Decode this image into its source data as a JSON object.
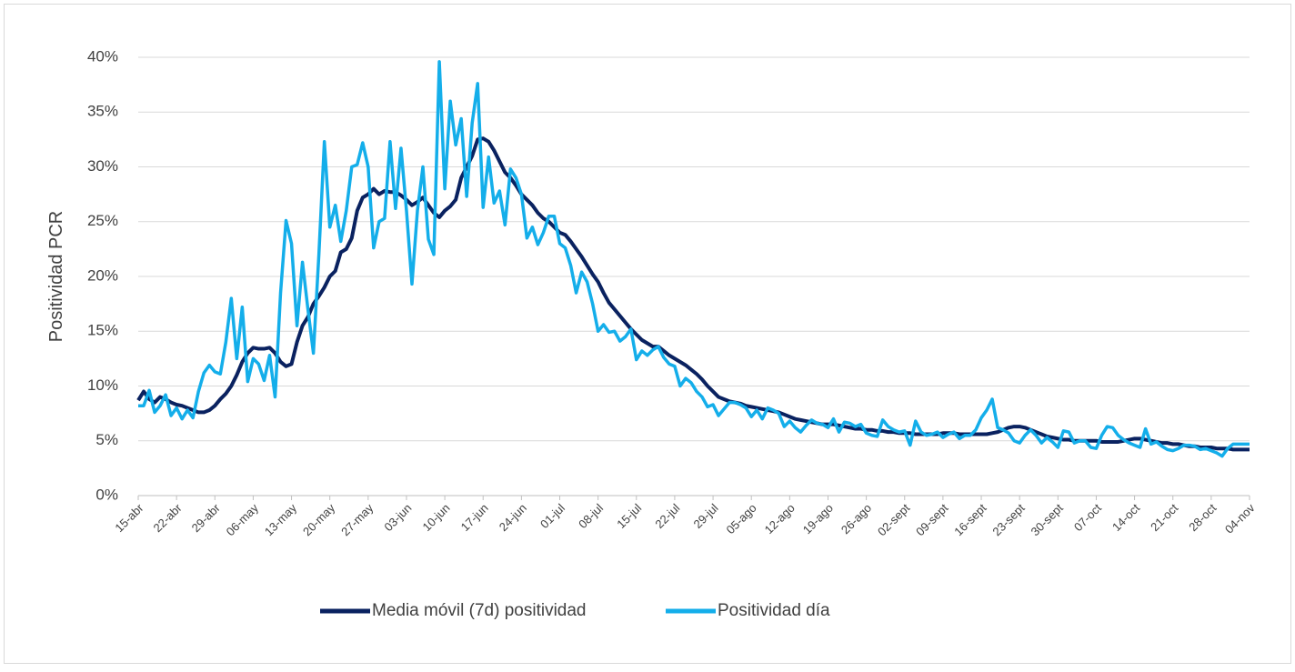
{
  "chart_data": {
    "type": "line",
    "y_label": "Positividad PCR",
    "categories": [
      "15-abr",
      null,
      null,
      null,
      null,
      null,
      null,
      "22-abr",
      null,
      null,
      null,
      null,
      null,
      null,
      "29-abr",
      null,
      null,
      null,
      null,
      null,
      null,
      "06-may",
      null,
      null,
      null,
      null,
      null,
      null,
      "13-may",
      null,
      null,
      null,
      null,
      null,
      null,
      "20-may",
      null,
      null,
      null,
      null,
      null,
      null,
      "27-may",
      null,
      null,
      null,
      null,
      null,
      null,
      "03-jun",
      null,
      null,
      null,
      null,
      null,
      null,
      "10-jun",
      null,
      null,
      null,
      null,
      null,
      null,
      "17-jun",
      null,
      null,
      null,
      null,
      null,
      null,
      "24-jun",
      null,
      null,
      null,
      null,
      null,
      null,
      "01-jul",
      null,
      null,
      null,
      null,
      null,
      null,
      "08-jul",
      null,
      null,
      null,
      null,
      null,
      null,
      "15-jul",
      null,
      null,
      null,
      null,
      null,
      null,
      "22-jul",
      null,
      null,
      null,
      null,
      null,
      null,
      "29-jul",
      null,
      null,
      null,
      null,
      null,
      null,
      "05-ago",
      null,
      null,
      null,
      null,
      null,
      null,
      "12-ago",
      null,
      null,
      null,
      null,
      null,
      null,
      "19-ago",
      null,
      null,
      null,
      null,
      null,
      null,
      "26-ago",
      null,
      null,
      null,
      null,
      null,
      null,
      "02-sept",
      null,
      null,
      null,
      null,
      null,
      null,
      "09-sept",
      null,
      null,
      null,
      null,
      null,
      null,
      "16-sept",
      null,
      null,
      null,
      null,
      null,
      null,
      "23-sept",
      null,
      null,
      null,
      null,
      null,
      null,
      "30-sept",
      null,
      null,
      null,
      null,
      null,
      null,
      "07-oct",
      null,
      null,
      null,
      null,
      null,
      null,
      "14-oct",
      null,
      null,
      null,
      null,
      null,
      null,
      "21-oct",
      null,
      null,
      null,
      null,
      null,
      null,
      "28-oct",
      null,
      null,
      null,
      null,
      null,
      null,
      "04-nov"
    ],
    "series": [
      {
        "name": "Media móvil (7d) positividad",
        "color": "#0a2260",
        "values": [
          8.7,
          9.5,
          8.8,
          8.5,
          9.0,
          8.8,
          8.5,
          8.3,
          8.2,
          8.0,
          7.8,
          7.6,
          7.6,
          7.8,
          8.2,
          8.8,
          9.3,
          10.0,
          11.0,
          12.2,
          13.0,
          13.5,
          13.4,
          13.4,
          13.5,
          13.0,
          12.2,
          11.8,
          12.0,
          14.0,
          15.5,
          16.3,
          17.5,
          18.2,
          19.0,
          20.0,
          20.5,
          22.2,
          22.5,
          23.5,
          26.0,
          27.2,
          27.5,
          28.0,
          27.5,
          27.8,
          27.7,
          27.7,
          27.4,
          27.0,
          26.5,
          26.8,
          27.2,
          26.5,
          25.8,
          25.4,
          26.0,
          26.4,
          27.0,
          29.0,
          30.0,
          31.0,
          32.5,
          32.6,
          32.3,
          31.5,
          30.5,
          29.5,
          29.0,
          28.3,
          27.5,
          27.0,
          26.5,
          25.8,
          25.3,
          25.0,
          24.5,
          24.0,
          23.8,
          23.2,
          22.5,
          21.8,
          21.0,
          20.2,
          19.5,
          18.5,
          17.6,
          17.0,
          16.4,
          15.8,
          15.2,
          14.7,
          14.2,
          13.9,
          13.6,
          13.6,
          13.2,
          12.8,
          12.5,
          12.2,
          11.9,
          11.5,
          11.1,
          10.6,
          10.0,
          9.5,
          9.0,
          8.8,
          8.6,
          8.5,
          8.4,
          8.2,
          8.1,
          8.0,
          7.9,
          7.8,
          7.7,
          7.6,
          7.4,
          7.2,
          7.0,
          6.9,
          6.8,
          6.7,
          6.6,
          6.5,
          6.5,
          6.5,
          6.4,
          6.3,
          6.2,
          6.1,
          6.1,
          6.0,
          6.0,
          5.9,
          5.9,
          5.8,
          5.8,
          5.7,
          5.7,
          5.7,
          5.6,
          5.6,
          5.6,
          5.6,
          5.6,
          5.7,
          5.7,
          5.7,
          5.6,
          5.6,
          5.6,
          5.6,
          5.6,
          5.6,
          5.7,
          5.8,
          6.0,
          6.2,
          6.3,
          6.3,
          6.2,
          6.0,
          5.8,
          5.6,
          5.4,
          5.3,
          5.2,
          5.1,
          5.1,
          5.0,
          5.0,
          5.0,
          5.0,
          5.0,
          4.9,
          4.9,
          4.9,
          4.9,
          5.0,
          5.1,
          5.2,
          5.2,
          5.1,
          5.0,
          4.9,
          4.8,
          4.8,
          4.7,
          4.7,
          4.6,
          4.5,
          4.5,
          4.4,
          4.4,
          4.4,
          4.3,
          4.3,
          4.3,
          4.2,
          4.2,
          4.2,
          4.2
        ]
      },
      {
        "name": "Positividad día",
        "color": "#14aeea",
        "values": [
          8.2,
          8.2,
          9.6,
          7.6,
          8.2,
          9.2,
          7.3,
          8.0,
          7.0,
          7.8,
          7.1,
          9.5,
          11.2,
          11.9,
          11.3,
          11.1,
          14.0,
          18.0,
          12.5,
          17.2,
          10.4,
          12.5,
          12.0,
          10.5,
          12.8,
          9.0,
          18.5,
          25.1,
          23.0,
          15.5,
          21.3,
          17.0,
          13.0,
          22.0,
          32.3,
          24.5,
          26.5,
          23.2,
          26.0,
          30.0,
          30.2,
          32.2,
          30.0,
          22.6,
          25.0,
          25.3,
          32.3,
          26.2,
          31.7,
          26.0,
          19.3,
          26.0,
          30.0,
          23.4,
          22.0,
          39.6,
          28.0,
          36.0,
          32.0,
          34.4,
          27.3,
          34.0,
          37.6,
          26.3,
          30.9,
          26.7,
          27.8,
          24.7,
          29.8,
          29.0,
          27.5,
          23.5,
          24.5,
          22.9,
          24.0,
          25.5,
          25.5,
          23.0,
          22.6,
          21.0,
          18.5,
          20.4,
          19.5,
          17.5,
          15.0,
          15.6,
          14.9,
          15.0,
          14.1,
          14.5,
          15.2,
          12.4,
          13.2,
          12.8,
          13.3,
          13.6,
          12.6,
          12.0,
          11.8,
          10.0,
          10.7,
          10.3,
          9.5,
          9.0,
          8.1,
          8.3,
          7.3,
          7.9,
          8.5,
          8.5,
          8.3,
          8.0,
          7.2,
          7.8,
          7.0,
          8.0,
          7.8,
          7.5,
          6.3,
          6.8,
          6.2,
          5.8,
          6.4,
          6.9,
          6.6,
          6.5,
          6.2,
          7.0,
          5.8,
          6.7,
          6.6,
          6.3,
          6.5,
          5.7,
          5.5,
          5.4,
          6.9,
          6.3,
          6.0,
          5.8,
          5.9,
          4.6,
          6.8,
          5.8,
          5.5,
          5.6,
          5.8,
          5.3,
          5.6,
          5.8,
          5.2,
          5.5,
          5.5,
          6.0,
          7.1,
          7.8,
          8.8,
          6.2,
          6.0,
          5.7,
          5.0,
          4.8,
          5.5,
          6.0,
          5.5,
          4.8,
          5.3,
          4.9,
          4.4,
          5.9,
          5.8,
          4.8,
          5.0,
          5.0,
          4.4,
          4.3,
          5.5,
          6.3,
          6.2,
          5.5,
          5.1,
          4.8,
          4.6,
          4.4,
          6.1,
          4.7,
          4.9,
          4.5,
          4.2,
          4.1,
          4.3,
          4.6,
          4.6,
          4.5,
          4.2,
          4.3,
          4.1,
          3.9,
          3.6,
          4.3,
          4.7,
          4.7,
          4.7,
          4.7
        ]
      }
    ],
    "ylim": [
      0,
      40
    ],
    "yticks": [
      {
        "value": 0,
        "label": "0%"
      },
      {
        "value": 5,
        "label": "5%"
      },
      {
        "value": 10,
        "label": "10%"
      },
      {
        "value": 15,
        "label": "15%"
      },
      {
        "value": 20,
        "label": "20%"
      },
      {
        "value": 25,
        "label": "25%"
      },
      {
        "value": 30,
        "label": "30%"
      },
      {
        "value": 35,
        "label": "35%"
      },
      {
        "value": 40,
        "label": "40%"
      }
    ],
    "grid": true,
    "legend": "bottom"
  }
}
